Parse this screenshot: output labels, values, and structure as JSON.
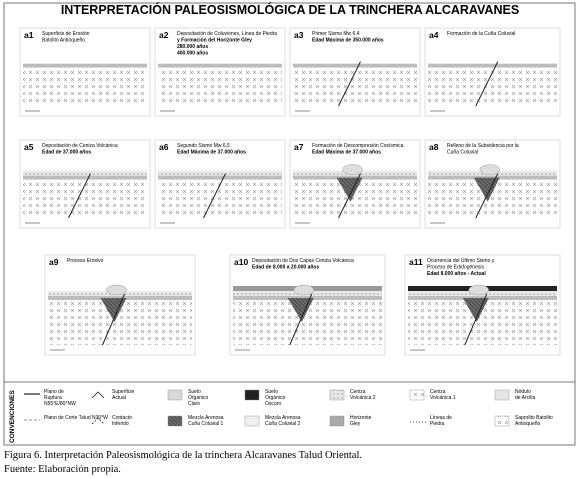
{
  "title": "INTERPRETACIÓN PALEOSISMOLÓGICA DE LA TRINCHERA ALCARAVANES",
  "panels": [
    {
      "id": "a1",
      "lines": [
        "Superficie de Erosión",
        "Batolito Antioqueño"
      ]
    },
    {
      "id": "a2",
      "lines": [
        "Depositación de Coluviones, Línea de Piedra",
        "y Formación del Horizonte Gley",
        "280.000 años",
        "400.000 años"
      ]
    },
    {
      "id": "a3",
      "lines": [
        "Primer Sismo Mw 6,4",
        "Edad Máxima de 350.000 años"
      ]
    },
    {
      "id": "a4",
      "lines": [
        "Formación de la Cuña Coluvial"
      ]
    },
    {
      "id": "a5",
      "lines": [
        "Depositación de Ceniza Volcánica",
        "Edad de 37.000 años"
      ]
    },
    {
      "id": "a6",
      "lines": [
        "Segundo Sismo Mw 6,5",
        "Edad Máxima de 37.000 años"
      ]
    },
    {
      "id": "a7",
      "lines": [
        "Formación de Descompresión Cosísmica",
        "Edad Máxima de 37.000 años"
      ]
    },
    {
      "id": "a8",
      "lines": [
        "Relleno de la Subsidencia por la",
        "Cuña Coluvial"
      ]
    },
    {
      "id": "a9",
      "lines": [
        "Proceso Erosivo"
      ]
    },
    {
      "id": "a10",
      "lines": [
        "Depositación de Dos Capas Ceniza Volcánica",
        "Edad de 8.000 a 20.000 años"
      ]
    },
    {
      "id": "a11",
      "lines": [
        "Ocurrencia del Último Sismo y",
        "Proceso de Edafogénesis",
        "Edad 8.000 años - Actual"
      ]
    }
  ],
  "legend": {
    "heading": "CONVENCIONES",
    "items": [
      {
        "lines": [
          "Plano de",
          "Ruptura",
          "N55°E/80°NW"
        ]
      },
      {
        "lines": [
          "Plano de Corte Talud N30°W"
        ]
      },
      {
        "lines": [
          "Superficie",
          "Actual"
        ]
      },
      {
        "lines": [
          "Contacto",
          "Inferido"
        ]
      },
      {
        "lines": [
          "Suelo",
          "Orgánico",
          "Claro"
        ]
      },
      {
        "lines": [
          "Mezcla Arenosa",
          "Cuña Coluvial 1"
        ]
      },
      {
        "lines": [
          "Suelo",
          "Orgánico",
          "Oscuro"
        ]
      },
      {
        "lines": [
          "Mezcla Arenosa",
          "Cuña Coluvial 2"
        ]
      },
      {
        "lines": [
          "Ceniza",
          "Volcánica 2"
        ]
      },
      {
        "lines": [
          "Horizonte",
          "Gley"
        ]
      },
      {
        "lines": [
          "Ceniza",
          "Volcánica 1"
        ]
      },
      {
        "lines": [
          "Líneas de",
          "Piedra"
        ]
      },
      {
        "lines": [
          "Nódulo",
          "de Arcilla"
        ]
      },
      {
        "lines": [
          "Saprolito Batolito",
          "Antioqueño"
        ]
      }
    ]
  },
  "caption": [
    "Figura 6. Interpretación Paleosismológica de la trinchera Alcaravanes Talud Oriental.",
    "Fuente: Elaboración propia."
  ]
}
